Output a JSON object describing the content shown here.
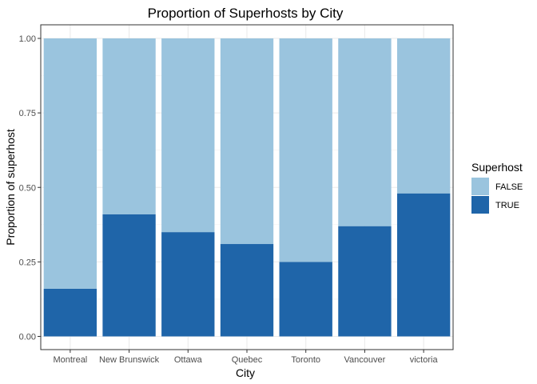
{
  "chart_data": {
    "type": "bar",
    "stacked": true,
    "title": "Proportion of Superhosts by City",
    "xlabel": "City",
    "ylabel": "Proportion of superhost",
    "ylim": [
      0,
      1
    ],
    "yticks": [
      "0.00",
      "0.25",
      "0.50",
      "0.75",
      "1.00"
    ],
    "ytick_values": [
      0,
      0.25,
      0.5,
      0.75,
      1.0
    ],
    "categories": [
      "Montreal",
      "New Brunswick",
      "Ottawa",
      "Quebec",
      "Toronto",
      "Vancouver",
      "victoria"
    ],
    "series": [
      {
        "name": "TRUE",
        "color": "#1f65a9",
        "values": [
          0.16,
          0.41,
          0.35,
          0.31,
          0.25,
          0.37,
          0.48
        ]
      },
      {
        "name": "FALSE",
        "color": "#9ac4de",
        "values": [
          0.84,
          0.59,
          0.65,
          0.69,
          0.75,
          0.63,
          0.52
        ]
      }
    ],
    "legend": {
      "title": "Superhost",
      "position": "right",
      "entries": [
        {
          "label": "FALSE",
          "color": "#9ac4de"
        },
        {
          "label": "TRUE",
          "color": "#1f65a9"
        }
      ]
    },
    "grid": true,
    "theme": "bw"
  }
}
